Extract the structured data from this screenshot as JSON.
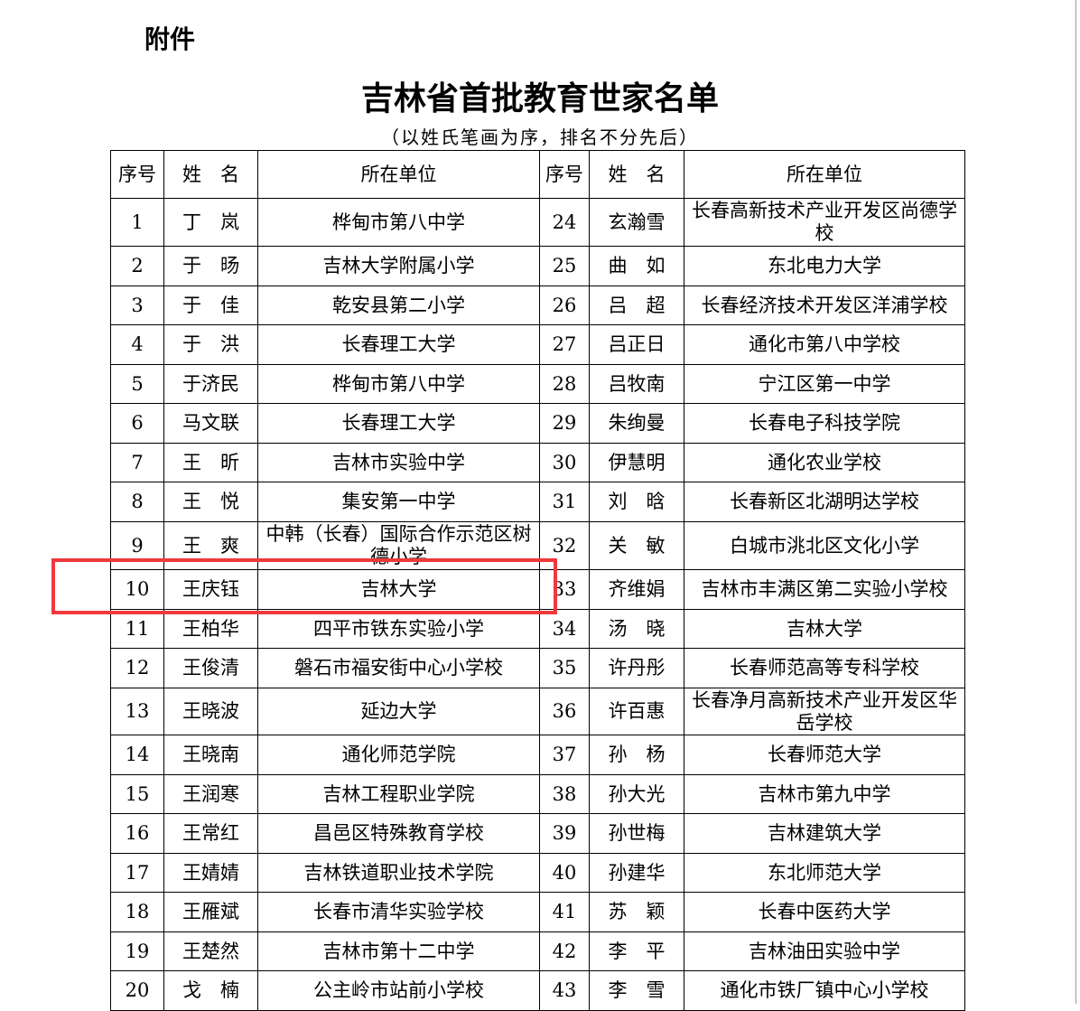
{
  "header": {
    "attachment": "附件",
    "title": "吉林省首批教育世家名单",
    "subtitle": "（以姓氏笔画为序，排名不分先后）"
  },
  "table": {
    "columns": [
      "序号",
      "姓　名",
      "所在单位",
      "序号",
      "姓　名",
      "所在单位"
    ],
    "rows": [
      [
        1,
        "丁　岚",
        "桦甸市第八中学",
        24,
        "玄瀚雪",
        "长春高新技术产业开发区尚德学校"
      ],
      [
        2,
        "于　旸",
        "吉林大学附属小学",
        25,
        "曲　如",
        "东北电力大学"
      ],
      [
        3,
        "于　佳",
        "乾安县第二小学",
        26,
        "吕　超",
        "长春经济技术开发区洋浦学校"
      ],
      [
        4,
        "于　洪",
        "长春理工大学",
        27,
        "吕正日",
        "通化市第八中学校"
      ],
      [
        5,
        "于济民",
        "桦甸市第八中学",
        28,
        "吕牧南",
        "宁江区第一中学"
      ],
      [
        6,
        "马文联",
        "长春理工大学",
        29,
        "朱绚曼",
        "长春电子科技学院"
      ],
      [
        7,
        "王　昕",
        "吉林市实验中学",
        30,
        "伊慧明",
        "通化农业学校"
      ],
      [
        8,
        "王　悦",
        "集安第一中学",
        31,
        "刘　晗",
        "长春新区北湖明达学校"
      ],
      [
        9,
        "王　爽",
        "中韩（长春）国际合作示范区树德小学",
        32,
        "关　敏",
        "白城市洮北区文化小学"
      ],
      [
        10,
        "王庆钰",
        "吉林大学",
        33,
        "齐维娟",
        "吉林市丰满区第二实验小学校"
      ],
      [
        11,
        "王柏华",
        "四平市铁东实验小学",
        34,
        "汤　晓",
        "吉林大学"
      ],
      [
        12,
        "王俊清",
        "磐石市福安街中心小学校",
        35,
        "许丹彤",
        "长春师范高等专科学校"
      ],
      [
        13,
        "王晓波",
        "延边大学",
        36,
        "许百惠",
        "长春净月高新技术产业开发区华岳学校"
      ],
      [
        14,
        "王晓南",
        "通化师范学院",
        37,
        "孙　杨",
        "长春师范大学"
      ],
      [
        15,
        "王润寒",
        "吉林工程职业学院",
        38,
        "孙大光",
        "吉林市第九中学"
      ],
      [
        16,
        "王常红",
        "昌邑区特殊教育学校",
        39,
        "孙世梅",
        "吉林建筑大学"
      ],
      [
        17,
        "王婧婧",
        "吉林铁道职业技术学院",
        40,
        "孙建华",
        "东北师范大学"
      ],
      [
        18,
        "王雁斌",
        "长春市清华实验学校",
        41,
        "苏　颖",
        "长春中医药大学"
      ],
      [
        19,
        "王楚然",
        "吉林市第十二中学",
        42,
        "李　平",
        "吉林油田实验中学"
      ],
      [
        20,
        "戈　楠",
        "公主岭市站前小学校",
        43,
        "李　雪",
        "通化市铁厂镇中心小学校"
      ]
    ]
  }
}
